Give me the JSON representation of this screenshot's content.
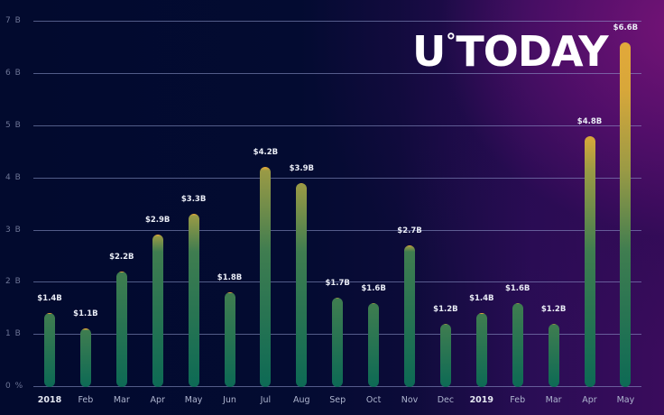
{
  "brand": {
    "logo_u": "U",
    "logo_deg": "°",
    "logo_rest": "TODAY"
  },
  "colors": {
    "background": "#020a2e",
    "bar_bottom": "#0f6b55",
    "bar_mid": "#5d8a4c",
    "bar_top": "#d7a63a",
    "accent_purple": "#5a1470"
  },
  "yaxis": {
    "ticks": [
      "0 %",
      "1 B",
      "2 B",
      "3 B",
      "4 B",
      "5 B",
      "6 B",
      "7 B"
    ]
  },
  "chart_data": {
    "type": "bar",
    "title": "",
    "xlabel": "",
    "ylabel": "",
    "ylim": [
      0,
      7
    ],
    "unit": "billion USD",
    "grid": true,
    "categories": [
      "2018",
      "Feb",
      "Mar",
      "Apr",
      "May",
      "Jun",
      "Jul",
      "Aug",
      "Sep",
      "Oct",
      "Nov",
      "Dec",
      "2019",
      "Feb",
      "Mar",
      "Apr",
      "May"
    ],
    "values": [
      1.4,
      1.1,
      2.2,
      2.9,
      3.3,
      1.8,
      4.2,
      3.9,
      1.7,
      1.6,
      2.7,
      1.2,
      1.4,
      1.6,
      1.2,
      4.8,
      6.6
    ],
    "labels": [
      "$1.4B",
      "$1.1B",
      "$2.2B",
      "$2.9B",
      "$3.3B",
      "$1.8B",
      "$4.2B",
      "$3.9B",
      "$1.7B",
      "$1.6B",
      "$2.7B",
      "$1.2B",
      "$1.4B",
      "$1.6B",
      "$1.2B",
      "$4.8B",
      "$6.6B"
    ],
    "ytick_labels": [
      "0 %",
      "1 B",
      "2 B",
      "3 B",
      "4 B",
      "5 B",
      "6 B",
      "7 B"
    ]
  },
  "bars": [
    {
      "x": "2018",
      "label": "$1.4B",
      "year": true
    },
    {
      "x": "Feb",
      "label": "$1.1B"
    },
    {
      "x": "Mar",
      "label": "$2.2B"
    },
    {
      "x": "Apr",
      "label": "$2.9B"
    },
    {
      "x": "May",
      "label": "$3.3B"
    },
    {
      "x": "Jun",
      "label": "$1.8B"
    },
    {
      "x": "Jul",
      "label": "$4.2B"
    },
    {
      "x": "Aug",
      "label": "$3.9B"
    },
    {
      "x": "Sep",
      "label": "$1.7B"
    },
    {
      "x": "Oct",
      "label": "$1.6B"
    },
    {
      "x": "Nov",
      "label": "$2.7B"
    },
    {
      "x": "Dec",
      "label": "$1.2B"
    },
    {
      "x": "2019",
      "label": "$1.4B",
      "year": true
    },
    {
      "x": "Feb",
      "label": "$1.6B"
    },
    {
      "x": "Mar",
      "label": "$1.2B"
    },
    {
      "x": "Apr",
      "label": "$4.8B"
    },
    {
      "x": "May",
      "label": "$6.6B"
    }
  ]
}
